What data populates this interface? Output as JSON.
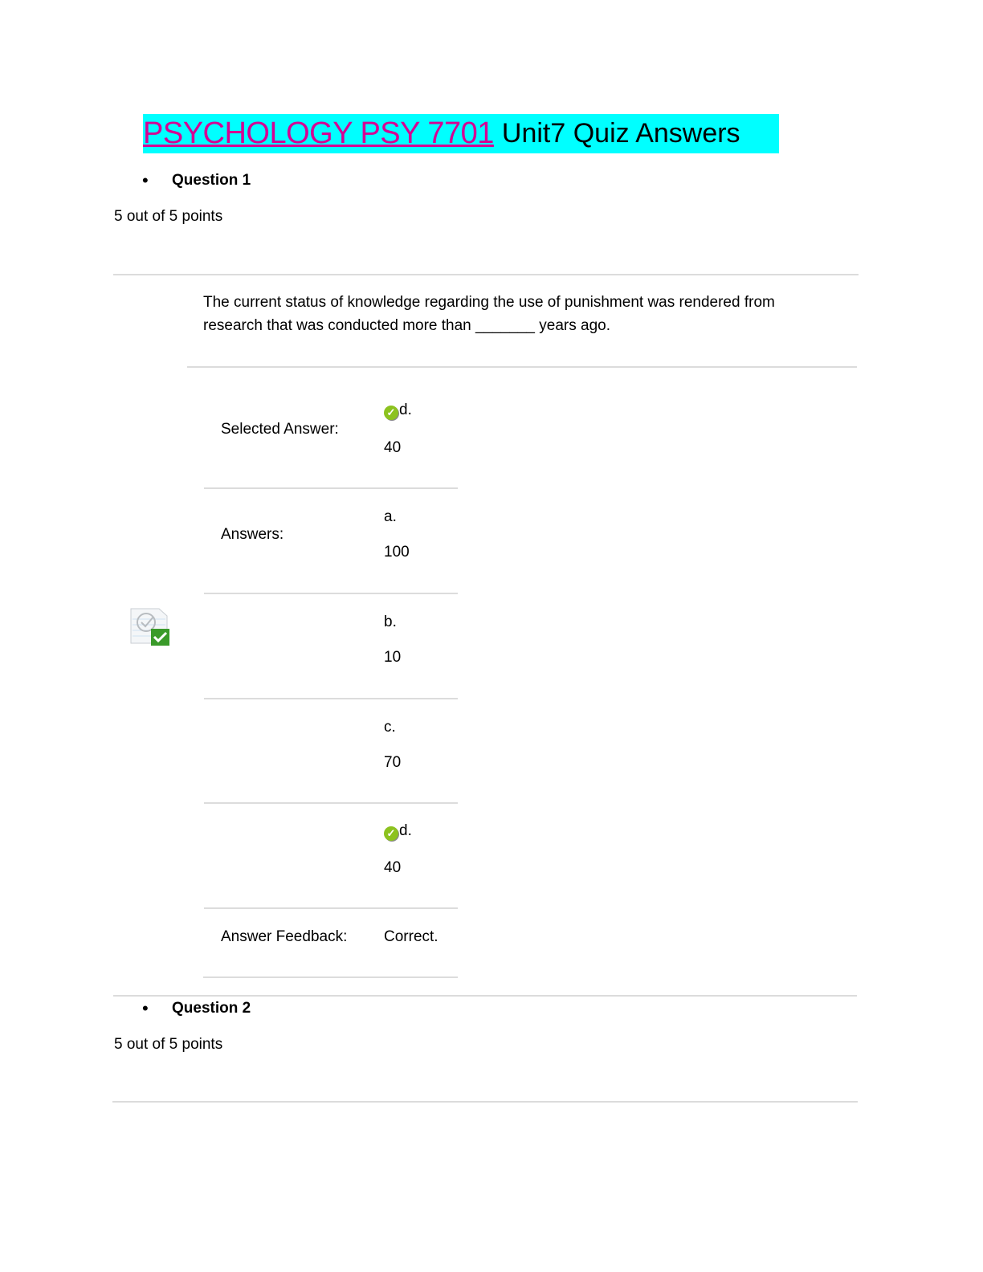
{
  "title": {
    "link_text": "PSYCHOLOGY PSY 7701",
    "rest_text": "Unit7 Quiz Answers",
    "highlight_color": "#00ffff",
    "link_color": "#d60093"
  },
  "questions": [
    {
      "label": "Question 1",
      "score": "5 out of 5 points",
      "text_line1": "The current status of knowledge regarding the use of punishment was rendered from",
      "text_line2": "research that was conducted more than _______ years ago.",
      "selected_label": "Selected Answer:",
      "selected": {
        "letter": "d.",
        "value": "40",
        "icon": "correct-check-icon"
      },
      "answers_label": "Answers:",
      "answers": [
        {
          "letter": "a.",
          "value": "100"
        },
        {
          "letter": "b.",
          "value": "10"
        },
        {
          "letter": "c.",
          "value": "70"
        },
        {
          "letter": "d.",
          "value": "40",
          "correct": true
        }
      ],
      "feedback_label": "Answer Feedback:",
      "feedback": "Correct.",
      "status_icon": "graded-correct-icon"
    },
    {
      "label": "Question 2",
      "score": "5 out of 5 points"
    }
  ]
}
